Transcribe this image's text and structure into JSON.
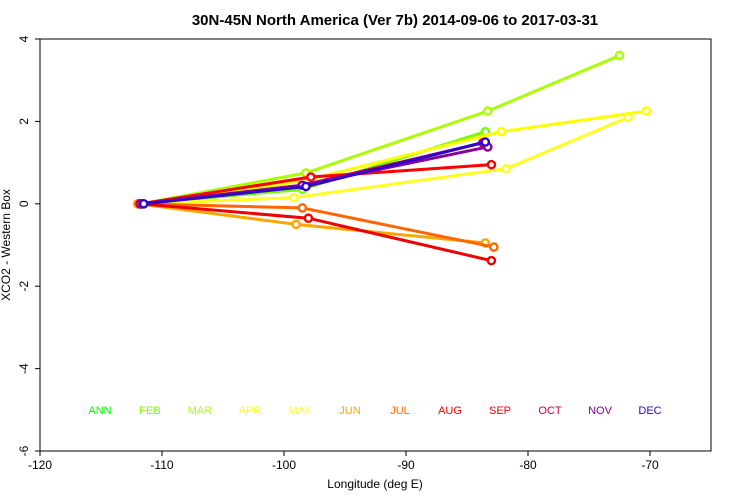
{
  "chart_data": {
    "type": "line",
    "title": "30N-45N North America (Ver 7b)   2014-09-06 to 2017-03-31",
    "xlabel": "Longitude (deg E)",
    "ylabel": "XCO2 - Western Box",
    "xlim": [
      -120,
      -65
    ],
    "ylim": [
      -6,
      4
    ],
    "xticks": [
      -120,
      -110,
      -100,
      -90,
      -80,
      -70
    ],
    "yticks": [
      -6,
      -4,
      -2,
      0,
      2,
      4
    ],
    "grid": false,
    "legend_position": "bottom-center",
    "series": [
      {
        "name": "ANN",
        "color": "#00ff00",
        "x": [
          -111.5,
          -98.5,
          -83.5
        ],
        "y": [
          0.0,
          0.4,
          1.5
        ]
      },
      {
        "name": "FEB",
        "color": "#77ff00",
        "x": [
          -111.8,
          -98.5,
          -83.5
        ],
        "y": [
          0.0,
          0.35,
          1.75
        ]
      },
      {
        "name": "MAR",
        "color": "#aaff00",
        "x": [
          -111.7,
          -98.2,
          -83.3,
          -72.5
        ],
        "y": [
          0.0,
          0.75,
          2.25,
          3.6
        ]
      },
      {
        "name": "APR",
        "color": "#ffff00",
        "x": [
          -111.5,
          -98.5,
          -82.2,
          -70.3
        ],
        "y": [
          0.0,
          0.55,
          1.75,
          2.25
        ]
      },
      {
        "name": "MAY",
        "color": "#ffff22",
        "x": [
          -111.6,
          -99.2,
          -81.8,
          -71.8
        ],
        "y": [
          0.0,
          0.15,
          0.85,
          2.1
        ]
      },
      {
        "name": "JUN",
        "color": "#ffa500",
        "x": [
          -112.0,
          -99.0,
          -83.5
        ],
        "y": [
          0.0,
          -0.5,
          -0.95
        ]
      },
      {
        "name": "JUL",
        "color": "#ff6600",
        "x": [
          -111.8,
          -98.5,
          -82.8
        ],
        "y": [
          0.0,
          -0.1,
          -1.05
        ]
      },
      {
        "name": "AUG",
        "color": "#ee0000",
        "x": [
          -111.8,
          -98.0,
          -83.0
        ],
        "y": [
          0.0,
          -0.35,
          -1.38
        ]
      },
      {
        "name": "SEP",
        "color": "#ff0000",
        "x": [
          -111.8,
          -97.8,
          -83.0
        ],
        "y": [
          0.0,
          0.65,
          0.95
        ]
      },
      {
        "name": "OCT",
        "color": "#cc0044",
        "x": [
          -111.8,
          -98.5,
          -83.7
        ],
        "y": [
          0.0,
          0.45,
          1.48
        ]
      },
      {
        "name": "NOV",
        "color": "#880099",
        "x": [
          -111.6,
          -98.5,
          -83.3
        ],
        "y": [
          0.0,
          0.45,
          1.38
        ]
      },
      {
        "name": "DEC",
        "color": "#3300cc",
        "x": [
          -111.5,
          -98.2,
          -83.5
        ],
        "y": [
          0.0,
          0.42,
          1.5
        ]
      }
    ],
    "legend": [
      {
        "label": "ANN",
        "color": "#00ff00"
      },
      {
        "label": "FEB",
        "color": "#77ff00"
      },
      {
        "label": "MAR",
        "color": "#aaff00"
      },
      {
        "label": "APR",
        "color": "#ffff00"
      },
      {
        "label": "MAY",
        "color": "#ffff22"
      },
      {
        "label": "JUN",
        "color": "#ffa500"
      },
      {
        "label": "JUL",
        "color": "#ff6600"
      },
      {
        "label": "AUG",
        "color": "#ee0000"
      },
      {
        "label": "SEP",
        "color": "#ff0000"
      },
      {
        "label": "OCT",
        "color": "#cc0044"
      },
      {
        "label": "NOV",
        "color": "#880099"
      },
      {
        "label": "DEC",
        "color": "#3300cc"
      }
    ]
  }
}
